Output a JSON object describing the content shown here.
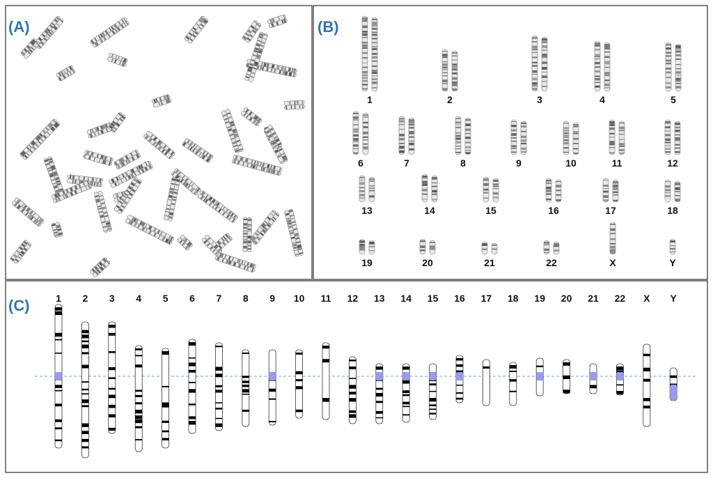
{
  "panel_a": {
    "label": "(A)"
  },
  "panel_b": {
    "label": "(B)",
    "chromosome_labels": [
      "1",
      "2",
      "3",
      "4",
      "5",
      "6",
      "7",
      "8",
      "9",
      "10",
      "11",
      "12",
      "13",
      "14",
      "15",
      "16",
      "17",
      "18",
      "19",
      "20",
      "21",
      "22",
      "X",
      "Y"
    ]
  },
  "panel_c": {
    "label": "(C)",
    "chromosome_labels": [
      "1",
      "2",
      "3",
      "4",
      "5",
      "6",
      "7",
      "8",
      "9",
      "10",
      "11",
      "12",
      "13",
      "14",
      "15",
      "16",
      "17",
      "18",
      "19",
      "20",
      "21",
      "22",
      "X",
      "Y"
    ]
  }
}
